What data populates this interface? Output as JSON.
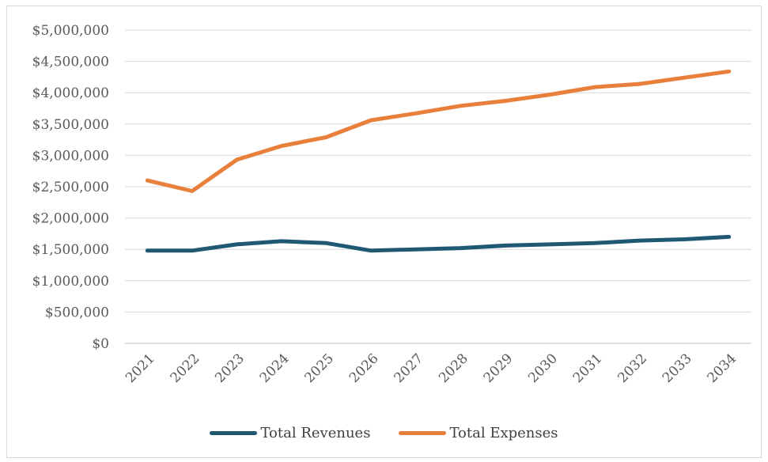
{
  "chart_data": {
    "type": "line",
    "title": "",
    "xlabel": "",
    "ylabel": "",
    "categories": [
      "2021",
      "2022",
      "2023",
      "2024",
      "2025",
      "2026",
      "2027",
      "2028",
      "2029",
      "2030",
      "2031",
      "2032",
      "2033",
      "2034"
    ],
    "ylim": [
      0,
      5000000
    ],
    "yticks": [
      0,
      500000,
      1000000,
      1500000,
      2000000,
      2500000,
      3000000,
      3500000,
      4000000,
      4500000,
      5000000
    ],
    "ytick_labels": [
      "$0",
      "$500,000",
      "$1,000,000",
      "$1,500,000",
      "$2,000,000",
      "$2,500,000",
      "$3,000,000",
      "$3,500,000",
      "$4,000,000",
      "$4,500,000",
      "$5,000,000"
    ],
    "grid": true,
    "legend_position": "bottom",
    "series": [
      {
        "name": "Total Revenues",
        "color": "#1f5873",
        "values": [
          1480000,
          1480000,
          1580000,
          1630000,
          1600000,
          1480000,
          1500000,
          1520000,
          1560000,
          1580000,
          1600000,
          1640000,
          1660000,
          1700000
        ]
      },
      {
        "name": "Total Expenses",
        "color": "#e8803b",
        "values": [
          2600000,
          2430000,
          2930000,
          3150000,
          3290000,
          3560000,
          3670000,
          3790000,
          3870000,
          3970000,
          4090000,
          4140000,
          4240000,
          4340000
        ]
      }
    ]
  }
}
